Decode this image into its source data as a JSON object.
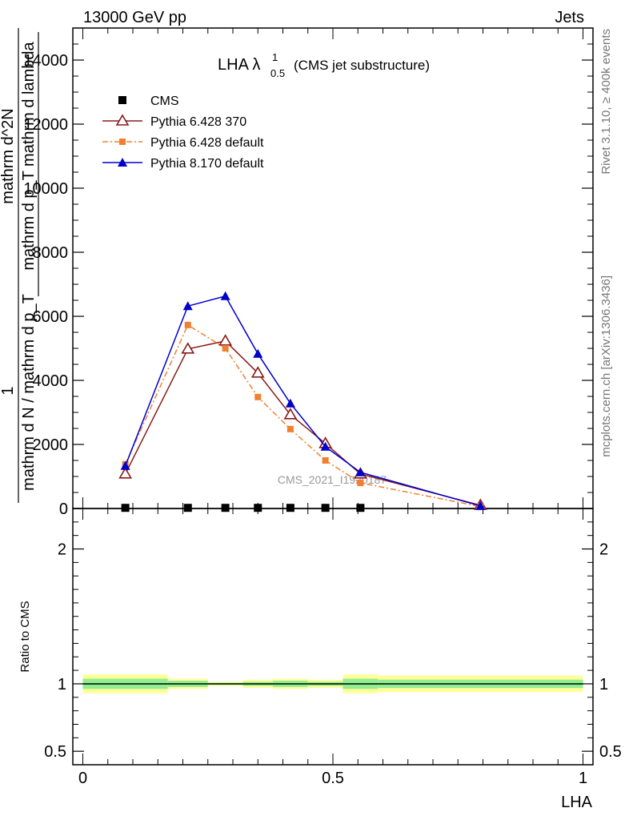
{
  "header": {
    "energy_label": "13000 GeV pp",
    "process_label": "Jets"
  },
  "side_labels": {
    "rivet": "Rivet 3.1.10, ≥ 400k events",
    "mcplots": "mcplots.cern.ch [arXiv:1306.3436]"
  },
  "watermark": "CMS_2021_I1920187",
  "chart_data": [
    {
      "type": "line",
      "title": "LHA λ",
      "title_superscript": "1",
      "title_subscript": "0.5",
      "title_suffix": "(CMS jet substructure)",
      "ylabel_numerator": "1",
      "ylabel_denominator": "mathrm d N / mathrm d p_T",
      "ylabel_upper": "mathrm d^2N",
      "ylabel_lower": "mathrm d p_T mathrm d lambda",
      "ylim": [
        0,
        15000
      ],
      "yticks": [
        0,
        2000,
        4000,
        6000,
        8000,
        10000,
        12000,
        14000
      ],
      "ytick_labels": [
        "0",
        "2000",
        "4000",
        "6000",
        "8000",
        "10000",
        "12000",
        "14000"
      ],
      "xlim": [
        -0.02,
        1.02
      ],
      "legend_position": "top-left",
      "series": [
        {
          "name": "CMS",
          "color": "#000000",
          "marker": "square",
          "x": [
            0.085,
            0.21,
            0.285,
            0.35,
            0.415,
            0.485,
            0.555
          ],
          "y": [
            20,
            20,
            20,
            20,
            20,
            20,
            20
          ]
        },
        {
          "name": "Pythia 6.428 370",
          "color": "#8b1a1a",
          "marker": "triangle-open",
          "dash": "solid",
          "x": [
            0.085,
            0.21,
            0.285,
            0.35,
            0.415,
            0.485,
            0.555,
            0.795
          ],
          "y": [
            1080,
            4980,
            5230,
            4230,
            2930,
            2030,
            1080,
            100
          ]
        },
        {
          "name": "Pythia 6.428 default",
          "color": "#f08030",
          "marker": "square-small",
          "dash": "dashdot",
          "x": [
            0.085,
            0.21,
            0.285,
            0.35,
            0.415,
            0.485,
            0.555,
            0.795
          ],
          "y": [
            1380,
            5730,
            5000,
            3480,
            2480,
            1500,
            800,
            60
          ]
        },
        {
          "name": "Pythia 8.170 default",
          "color": "#0000cc",
          "marker": "triangle-filled",
          "dash": "solid",
          "x": [
            0.085,
            0.21,
            0.285,
            0.35,
            0.415,
            0.485,
            0.555,
            0.795
          ],
          "y": [
            1330,
            6320,
            6630,
            4830,
            3280,
            1930,
            1130,
            80
          ]
        }
      ]
    },
    {
      "type": "area",
      "ylabel": "Ratio to CMS",
      "xlabel": "LHA",
      "ylim": [
        0.4,
        2.3
      ],
      "yticks": [
        0.5,
        1,
        2
      ],
      "ytick_labels": [
        "0.5",
        "1",
        "2"
      ],
      "xlim": [
        -0.02,
        1.02
      ],
      "xticks": [
        0,
        0.5,
        1
      ],
      "xtick_labels": [
        "0",
        "0.5",
        "1"
      ],
      "reference_line": 1,
      "bins": [
        {
          "x0": 0.0,
          "x1": 0.17,
          "band_inner": [
            0.962,
            1.038
          ],
          "band_outer": [
            0.93,
            1.07
          ]
        },
        {
          "x0": 0.17,
          "x1": 0.25,
          "band_inner": [
            0.977,
            1.023
          ],
          "band_outer": [
            0.962,
            1.038
          ]
        },
        {
          "x0": 0.25,
          "x1": 0.32,
          "band_inner": [
            0.992,
            1.008
          ],
          "band_outer": [
            0.985,
            1.015
          ]
        },
        {
          "x0": 0.32,
          "x1": 0.38,
          "band_inner": [
            0.985,
            1.015
          ],
          "band_outer": [
            0.97,
            1.03
          ]
        },
        {
          "x0": 0.38,
          "x1": 0.45,
          "band_inner": [
            0.977,
            1.023
          ],
          "band_outer": [
            0.962,
            1.038
          ]
        },
        {
          "x0": 0.45,
          "x1": 0.52,
          "band_inner": [
            0.985,
            1.015
          ],
          "band_outer": [
            0.97,
            1.03
          ]
        },
        {
          "x0": 0.52,
          "x1": 0.59,
          "band_inner": [
            0.962,
            1.038
          ],
          "band_outer": [
            0.93,
            1.07
          ]
        },
        {
          "x0": 0.59,
          "x1": 1.0,
          "band_inner": [
            0.969,
            1.031
          ],
          "band_outer": [
            0.939,
            1.061
          ]
        }
      ],
      "band_colors": {
        "inner": "#90ee90",
        "outer": "#ffff99"
      }
    }
  ]
}
